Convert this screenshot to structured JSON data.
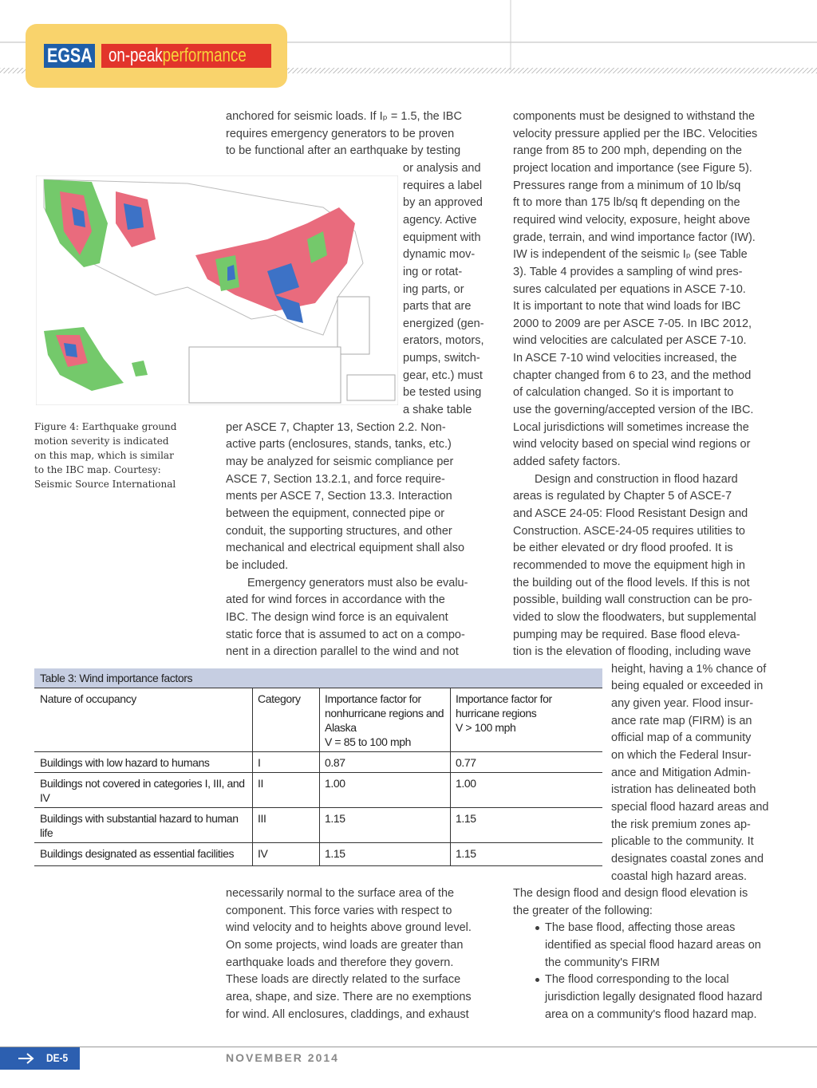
{
  "header": {
    "logo_left": "EGSA",
    "logo_mid": "on-peak",
    "logo_right": "performance"
  },
  "figure": {
    "caption": [
      "Figure 4: Earthquake ground",
      "motion severity is indicated",
      "on this map, which is similar",
      "to the IBC map. Courtesy:",
      "Seismic Source International"
    ]
  },
  "middle_top": {
    "paragraphs": [
      [
        "anchored for seismic loads. If Iₚ = 1.5, the IBC",
        "requires emergency generators to be proven",
        "to be functional after an earthquake by testing",
        "or analysis and",
        "requires a label",
        "by an approved",
        "agency. Active",
        "equipment with",
        "dynamic mov-",
        "ing or rotat-",
        "ing parts, or",
        "parts that are",
        "energized (gen-",
        "erators, motors,",
        "pumps, switch-",
        "gear, etc.) must",
        "be tested using",
        "a shake table",
        "per ASCE 7, Chapter 13, Section 2.2. Non-",
        "active parts (enclosures, stands, tanks, etc.)",
        "may be analyzed for seismic compliance per",
        "ASCE 7, Section 13.2.1, and force require-",
        "ments per ASCE 7, Section 13.3. Interaction",
        "between the equipment, connected pipe or",
        "conduit, the supporting structures, and other",
        "mechanical and electrical equipment shall also",
        "be included."
      ],
      [
        "Emergency generators must also be evalu-",
        "ated for wind forces in accordance with the",
        "IBC. The design wind force is an equivalent",
        "static force that is assumed to act on a compo-",
        "nent in a direction parallel to the wind and not"
      ]
    ]
  },
  "right_top": {
    "paragraphs": [
      [
        "components must be designed to withstand the",
        "velocity pressure applied per the IBC. Velocities",
        "range from 85 to 200 mph, depending on the",
        "project location and importance (see Figure 5).",
        "Pressures range from a minimum of 10 lb/sq",
        "ft to more than 175 lb/sq ft depending on the",
        "required wind velocity, exposure, height above",
        "grade, terrain, and wind importance factor (IW).",
        "IW is independent of the seismic Iₚ (see Table",
        "3). Table 4 provides a sampling of wind pres-",
        "sures calculated per equations in ASCE 7-10.",
        "It is important to note that wind loads for IBC",
        "2000 to 2009 are per ASCE 7-05. In IBC 2012,",
        "wind velocities are calculated per ASCE 7-10.",
        "In ASCE 7-10 wind velocities increased, the",
        "chapter changed from 6 to 23, and the method",
        "of calculation changed. So it is important to",
        "use the governing/accepted version of the IBC.",
        "Local jurisdictions will sometimes increase the",
        "wind velocity based on special wind regions or",
        "added safety factors."
      ],
      [
        "Design and construction in flood hazard",
        "areas is regulated by Chapter 5 of ASCE-7",
        "and ASCE 24-05: Flood Resistant Design and",
        "Construction. ASCE-24-05 requires utilities to",
        "be either elevated or dry flood proofed. It is",
        "recommended to move the equipment high in",
        "the building out of the flood levels. If this is not",
        "possible, building wall construction can be pro-",
        "vided to slow the floodwaters, but supplemental",
        "pumping may be required. Base flood eleva-",
        "tion is the elevation of flooding, including wave",
        "height, having a 1% chance of",
        "being equaled or exceeded in",
        "any given year. Flood insur-",
        "ance rate map (FIRM) is an",
        "official map of a community",
        "on which the Federal Insur-",
        "ance and Mitigation Admin-",
        "istration has delineated both",
        "special flood hazard areas and",
        "the risk premium zones ap-",
        "plicable to the community. It",
        "designates coastal zones and",
        "coastal high hazard areas."
      ]
    ]
  },
  "table": {
    "title": "Table 3: Wind importance factors",
    "header": [
      [
        "Nature of occupancy"
      ],
      [
        "Category"
      ],
      [
        "Importance factor for",
        "nonhurricane regions and",
        "Alaska",
        "V = 85 to 100 mph"
      ],
      [
        "Importance factor for",
        "hurricane regions",
        "V > 100 mph"
      ]
    ],
    "rows": [
      [
        [
          "Buildings with low hazard to humans"
        ],
        [
          "I"
        ],
        [
          "0.87"
        ],
        [
          "0.77"
        ]
      ],
      [
        [
          "Buildings not covered in categories I, III, and",
          "IV"
        ],
        [
          "II"
        ],
        [
          "1.00"
        ],
        [
          "1.00"
        ]
      ],
      [
        [
          "Buildings with substantial hazard to human",
          "life"
        ],
        [
          "III"
        ],
        [
          "1.15"
        ],
        [
          "1.15"
        ]
      ],
      [
        [
          "Buildings designated as essential facilities"
        ],
        [
          "IV"
        ],
        [
          "1.15"
        ],
        [
          "1.15"
        ]
      ]
    ]
  },
  "middle_bottom": {
    "paragraphs": [
      [
        "necessarily normal to the surface area of the",
        "component. This force varies with respect to",
        "wind velocity and to heights above ground level.",
        "On some projects, wind loads are greater than",
        "earthquake loads and therefore they govern.",
        "These loads are directly related to the surface",
        "area, shape, and size. There are no exemptions",
        "for wind. All enclosures, claddings, and exhaust"
      ]
    ]
  },
  "right_bottom": {
    "intro": [
      "The design flood and design flood elevation is",
      "the greater of the following:"
    ],
    "bullets": [
      [
        "The base flood, affecting those areas",
        "identified as special flood hazard areas on",
        "the community's FIRM"
      ],
      [
        "The flood corresponding to the local",
        "jurisdiction legally designated flood hazard",
        "area on a community's flood hazard map."
      ]
    ]
  },
  "footer": {
    "page": "DE-5",
    "issue": "NOVEMBER 2014"
  }
}
